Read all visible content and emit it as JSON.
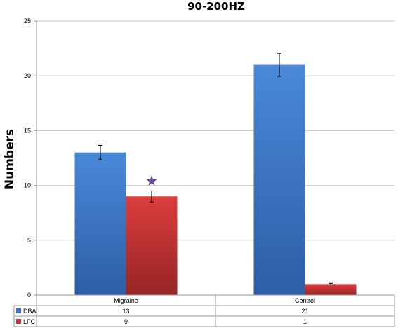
{
  "chart_data": {
    "type": "bar",
    "title": "90-200HZ",
    "ylabel": "Numbers",
    "xlabel": "",
    "ylim": [
      0,
      25
    ],
    "yticks": [
      0,
      5,
      10,
      15,
      20,
      25
    ],
    "categories": [
      "Migraine",
      "Control"
    ],
    "series": [
      {
        "name": "DBA",
        "values": [
          13,
          21
        ],
        "errors": [
          0.65,
          1.05
        ],
        "color": "#3d78c9"
      },
      {
        "name": "LFC",
        "values": [
          9,
          1
        ],
        "errors": [
          0.5,
          0.07
        ],
        "color": "#c73232"
      }
    ],
    "annotations": [
      {
        "type": "star",
        "category": "Migraine",
        "series": "LFC",
        "color": "#6a4c9c"
      }
    ],
    "legend": "data-table",
    "grid": true
  }
}
